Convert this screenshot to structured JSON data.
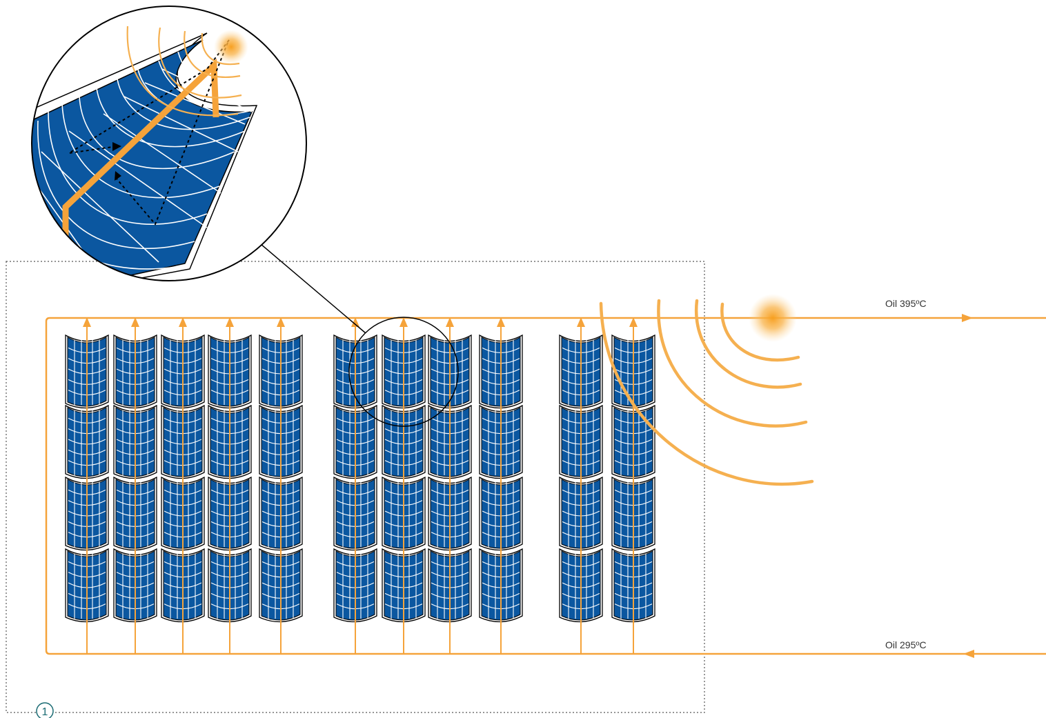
{
  "labels": {
    "oil_hot": "Oil 395ºC",
    "oil_cold": "Oil 295ºC",
    "field_number": "1"
  },
  "layout_desc": {
    "collector_groups": [
      5,
      4,
      2
    ],
    "rows_per_column": 4
  },
  "colors": {
    "oil_pipe": "#f5a33a",
    "mirror_blue": "#0b57a0",
    "mirror_grid": "#ffffff",
    "outline": "#000000",
    "boundary": "#555555",
    "marker": "#1a6b73"
  },
  "icons": {
    "sun": "sun-glow-icon",
    "radiation": "radiation-arcs",
    "collector": "parabolic-trough-collector"
  }
}
